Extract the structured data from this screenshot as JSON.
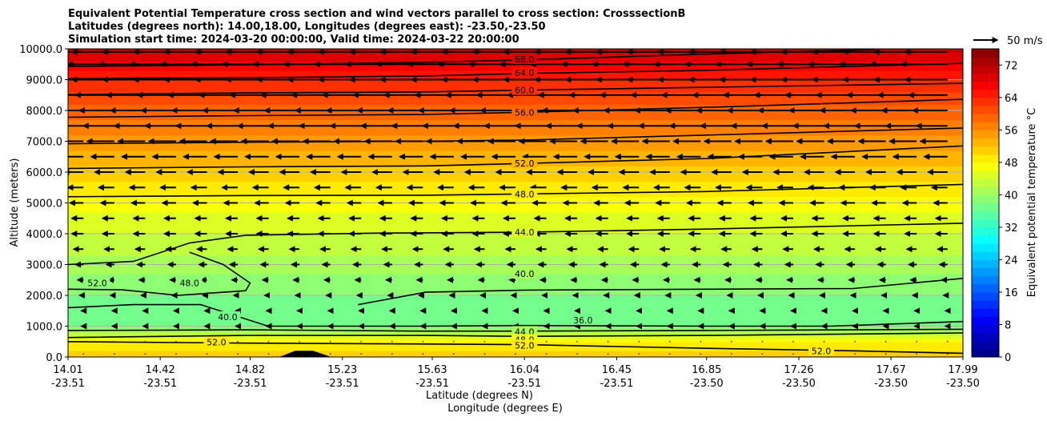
{
  "title_lines": [
    "Equivalent Potential Temperature cross section and wind vectors parallel to cross section: CrosssectionB",
    "Latitudes (degrees north): 14.00,18.00, Longitudes (degrees east): -23.50,-23.50",
    "Simulation start time: 2024-03-20 00:00:00, Valid time: 2024-03-22 20:00:00"
  ],
  "colors": {
    "colormap": [
      "#00007f",
      "#0000ff",
      "#007fff",
      "#00ffff",
      "#7fff7f",
      "#ffff00",
      "#ff7f00",
      "#ff0000",
      "#7f0000"
    ],
    "contour_line": "#000000",
    "grid": "#b0b0b0",
    "terrain": "#000000"
  },
  "chart_data": {
    "type": "heatmap",
    "title": "Equivalent Potential Temperature cross section and wind vectors parallel to cross section: CrosssectionB",
    "xlabel": "Latitude (degrees N)",
    "xlabel2": "Longitude (degrees E)",
    "ylabel": "Altitude (meters)",
    "x_ticks": [
      {
        "lat": "14.01",
        "lon": "-23.51"
      },
      {
        "lat": "14.42",
        "lon": "-23.51"
      },
      {
        "lat": "14.82",
        "lon": "-23.51"
      },
      {
        "lat": "15.23",
        "lon": "-23.51"
      },
      {
        "lat": "15.63",
        "lon": "-23.51"
      },
      {
        "lat": "16.04",
        "lon": "-23.51"
      },
      {
        "lat": "16.45",
        "lon": "-23.51"
      },
      {
        "lat": "16.85",
        "lon": "-23.50"
      },
      {
        "lat": "17.26",
        "lon": "-23.50"
      },
      {
        "lat": "17.67",
        "lon": "-23.50"
      },
      {
        "lat": "17.99",
        "lon": "-23.50"
      }
    ],
    "xlim": [
      14.01,
      17.99
    ],
    "ylim": [
      0,
      10000
    ],
    "y_ticks": [
      "0.0",
      "1000.0",
      "2000.0",
      "3000.0",
      "4000.0",
      "5000.0",
      "6000.0",
      "7000.0",
      "8000.0",
      "9000.0",
      "10000.0"
    ],
    "grid": true,
    "colorbar": {
      "label": "Equivalent potential temperature $^\\circ$C",
      "label_text": "Equivalent potential temperature °C",
      "min": 0,
      "max": 76,
      "step": 2,
      "ticks": [
        "0",
        "8",
        "16",
        "24",
        "32",
        "40",
        "48",
        "56",
        "64",
        "72"
      ]
    },
    "quiver_key": {
      "label": "50 m/s",
      "magnitude": 50
    },
    "field_profile": [
      {
        "altitude": 0,
        "value": 51
      },
      {
        "altitude": 500,
        "value": 48
      },
      {
        "altitude": 1000,
        "value": 37
      },
      {
        "altitude": 2000,
        "value": 38
      },
      {
        "altitude": 3000,
        "value": 41
      },
      {
        "altitude": 4000,
        "value": 44
      },
      {
        "altitude": 5000,
        "value": 47
      },
      {
        "altitude": 6000,
        "value": 51
      },
      {
        "altitude": 7000,
        "value": 55
      },
      {
        "altitude": 8000,
        "value": 59
      },
      {
        "altitude": 9000,
        "value": 64
      },
      {
        "altitude": 10000,
        "value": 71
      }
    ],
    "contours": [
      {
        "level": 68,
        "label": "68.0",
        "points": [
          [
            14.01,
            9430
          ],
          [
            14.8,
            9480
          ],
          [
            15.6,
            9560
          ],
          [
            16.04,
            9640
          ],
          [
            16.85,
            9830
          ],
          [
            17.6,
            9980
          ]
        ]
      },
      {
        "level": 64,
        "label": "64.0",
        "points": [
          [
            14.01,
            9030
          ],
          [
            14.8,
            9060
          ],
          [
            15.6,
            9120
          ],
          [
            16.04,
            9200
          ],
          [
            16.85,
            9300
          ],
          [
            17.99,
            9530
          ]
        ]
      },
      {
        "level": 60,
        "label": "60.0",
        "points": [
          [
            14.01,
            8520
          ],
          [
            14.8,
            8570
          ],
          [
            15.6,
            8600
          ],
          [
            16.04,
            8660
          ],
          [
            16.85,
            8750
          ],
          [
            17.99,
            8880
          ]
        ]
      },
      {
        "level": 56,
        "label": "56.0",
        "points": [
          [
            14.01,
            7780
          ],
          [
            14.8,
            7830
          ],
          [
            15.6,
            7870
          ],
          [
            16.04,
            7940
          ],
          [
            16.85,
            8100
          ],
          [
            17.99,
            8360
          ]
        ]
      },
      {
        "level": 52,
        "label": "52.0",
        "points": [
          [
            14.01,
            6920
          ],
          [
            14.8,
            6970
          ],
          [
            15.6,
            7000
          ],
          [
            16.04,
            7040
          ],
          [
            16.85,
            7200
          ],
          [
            17.99,
            7430
          ]
        ]
      },
      {
        "level": 52,
        "label": "52.0",
        "points": [
          [
            14.01,
            6120
          ],
          [
            14.8,
            6170
          ],
          [
            15.6,
            6200
          ],
          [
            16.04,
            6280
          ],
          [
            16.85,
            6440
          ],
          [
            17.99,
            6850
          ]
        ]
      },
      {
        "level": 48,
        "label": "48.0",
        "points": [
          [
            14.01,
            5200
          ],
          [
            14.8,
            5240
          ],
          [
            15.6,
            5250
          ],
          [
            16.04,
            5290
          ],
          [
            16.85,
            5370
          ],
          [
            17.99,
            5600
          ]
        ]
      },
      {
        "level": 44,
        "label": "44.0",
        "points": [
          [
            14.01,
            3000
          ],
          [
            14.3,
            3100
          ],
          [
            14.55,
            3700
          ],
          [
            14.8,
            3950
          ],
          [
            15.4,
            4020
          ],
          [
            16.04,
            4050
          ],
          [
            16.85,
            4150
          ],
          [
            17.99,
            4340
          ]
        ]
      },
      {
        "level": 48,
        "label": "48.0",
        "points": [
          [
            14.55,
            3400
          ],
          [
            14.7,
            3000
          ],
          [
            14.82,
            2400
          ],
          [
            14.8,
            2150
          ],
          [
            14.5,
            2000
          ],
          [
            14.25,
            2180
          ],
          [
            14.01,
            2200
          ]
        ]
      },
      {
        "level": 40,
        "label": "40.0",
        "points": [
          [
            14.01,
            1600
          ],
          [
            14.3,
            1700
          ],
          [
            14.6,
            1700
          ],
          [
            14.9,
            1000
          ],
          [
            15.3,
            1000
          ],
          [
            15.6,
            1000
          ],
          [
            16.04,
            1020
          ],
          [
            16.85,
            1000
          ],
          [
            17.4,
            1000
          ],
          [
            17.99,
            1150
          ]
        ]
      },
      {
        "level": 40,
        "label": "40.0",
        "points": [
          [
            15.3,
            1700
          ],
          [
            15.6,
            2100
          ],
          [
            16.04,
            2170
          ],
          [
            16.85,
            2200
          ],
          [
            17.5,
            2220
          ],
          [
            17.99,
            2550
          ]
        ]
      },
      {
        "level": 44,
        "label": "44.0",
        "points": [
          [
            14.01,
            860
          ],
          [
            14.8,
            880
          ],
          [
            15.6,
            840
          ],
          [
            16.04,
            840
          ],
          [
            16.85,
            860
          ],
          [
            17.99,
            900
          ]
        ]
      },
      {
        "level": 48,
        "label": "48.0",
        "points": [
          [
            14.01,
            630
          ],
          [
            14.8,
            700
          ],
          [
            15.6,
            700
          ],
          [
            16.04,
            670
          ],
          [
            16.85,
            700
          ],
          [
            17.99,
            780
          ]
        ]
      },
      {
        "level": 52,
        "label": "52.0",
        "points": [
          [
            14.01,
            500
          ],
          [
            14.8,
            450
          ],
          [
            15.6,
            420
          ],
          [
            16.04,
            400
          ],
          [
            16.85,
            280
          ],
          [
            17.5,
            200
          ],
          [
            17.99,
            120
          ]
        ]
      }
    ],
    "contour_label_positions": [
      {
        "text": "68.0",
        "lat": 16.04,
        "alt": 9660
      },
      {
        "text": "64.0",
        "lat": 16.04,
        "alt": 9220
      },
      {
        "text": "60.0",
        "lat": 16.04,
        "alt": 8660
      },
      {
        "text": "56.0",
        "lat": 16.04,
        "alt": 7940
      },
      {
        "text": "52.0",
        "lat": 16.04,
        "alt": 6280
      },
      {
        "text": "48.0",
        "lat": 16.04,
        "alt": 5290
      },
      {
        "text": "44.0",
        "lat": 16.04,
        "alt": 4050
      },
      {
        "text": "40.0",
        "lat": 16.04,
        "alt": 2700
      },
      {
        "text": "44.0",
        "lat": 16.04,
        "alt": 820
      },
      {
        "text": "48.0",
        "lat": 16.04,
        "alt": 560
      },
      {
        "text": "52.0",
        "lat": 16.04,
        "alt": 380
      },
      {
        "text": "52.0",
        "lat": 14.14,
        "alt": 2400
      },
      {
        "text": "48.0",
        "lat": 14.55,
        "alt": 2400
      },
      {
        "text": "40.0",
        "lat": 14.72,
        "alt": 1300
      },
      {
        "text": "52.0",
        "lat": 14.67,
        "alt": 480
      },
      {
        "text": "36.0",
        "lat": 16.3,
        "alt": 1200
      },
      {
        "text": "52.0",
        "lat": 17.36,
        "alt": 200
      }
    ],
    "terrain": [
      [
        14.95,
        0
      ],
      [
        15.02,
        200
      ],
      [
        15.1,
        200
      ],
      [
        15.18,
        0
      ]
    ],
    "wind_rows": [
      {
        "altitude": 100,
        "u": 0.0
      },
      {
        "altitude": 500,
        "u": 0.0
      },
      {
        "altitude": 1000,
        "u": -0.5
      },
      {
        "altitude": 1500,
        "u": -0.5
      },
      {
        "altitude": 2000,
        "u": -1.0
      },
      {
        "altitude": 2500,
        "u": -1.5
      },
      {
        "altitude": 3000,
        "u": -2.0
      },
      {
        "altitude": 3500,
        "u": -2.5
      },
      {
        "altitude": 4000,
        "u": -3.0
      },
      {
        "altitude": 4500,
        "u": -3.0
      },
      {
        "altitude": 5000,
        "u": -3.5
      },
      {
        "altitude": 5500,
        "u": -4.0
      },
      {
        "altitude": 6000,
        "u": -5.0
      },
      {
        "altitude": 6500,
        "u": -6.0
      },
      {
        "altitude": 7000,
        "u": -7.0
      },
      {
        "altitude": 7500,
        "u": -8.0
      },
      {
        "altitude": 8000,
        "u": -9.0
      },
      {
        "altitude": 8500,
        "u": -10.0
      },
      {
        "altitude": 9000,
        "u": -11.0
      },
      {
        "altitude": 9500,
        "u": -12.0
      },
      {
        "altitude": 9900,
        "u": -11.0
      }
    ],
    "wind_columns": 29
  }
}
